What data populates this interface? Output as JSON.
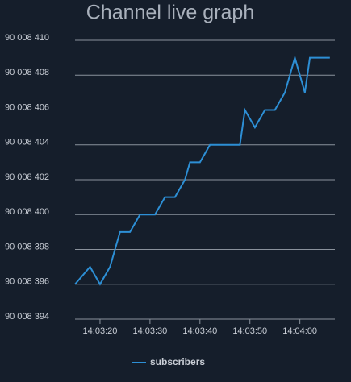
{
  "chart_data": {
    "type": "line",
    "title": "Channel live graph",
    "x": [
      "14:03:15",
      "14:03:18",
      "14:03:20",
      "14:03:22",
      "14:03:24",
      "14:03:26",
      "14:03:28",
      "14:03:29",
      "14:03:31",
      "14:03:33",
      "14:03:35",
      "14:03:37",
      "14:03:38",
      "14:03:40",
      "14:03:42",
      "14:03:44",
      "14:03:46",
      "14:03:48",
      "14:03:49",
      "14:03:51",
      "14:03:53",
      "14:03:55",
      "14:03:57",
      "14:03:59",
      "14:04:01",
      "14:04:02",
      "14:04:04",
      "14:04:06"
    ],
    "series": [
      {
        "name": "subscribers",
        "color": "#2d8fd5",
        "values": [
          90008396,
          90008397,
          90008396,
          90008397,
          90008399,
          90008399,
          90008400,
          90008400,
          90008400,
          90008401,
          90008401,
          90008402,
          90008403,
          90008403,
          90008404,
          90008404,
          90008404,
          90008404,
          90008406,
          90008405,
          90008406,
          90008406,
          90008407,
          90008409,
          90008407,
          90008409,
          90008409,
          90008409
        ]
      }
    ],
    "xlim": [
      "14:03:15",
      "14:04:07"
    ],
    "xticks": [
      "14:03:20",
      "14:03:30",
      "14:03:40",
      "14:03:50",
      "14:04:00"
    ],
    "ylim": [
      90008394,
      90008410
    ],
    "yticks": [
      {
        "value": 90008394,
        "label": "90 008 394"
      },
      {
        "value": 90008396,
        "label": "90 008 396"
      },
      {
        "value": 90008398,
        "label": "90 008 398"
      },
      {
        "value": 90008400,
        "label": "90 008 400"
      },
      {
        "value": 90008402,
        "label": "90 008 402"
      },
      {
        "value": 90008404,
        "label": "90 008 404"
      },
      {
        "value": 90008406,
        "label": "90 008 406"
      },
      {
        "value": 90008408,
        "label": "90 008 408"
      },
      {
        "value": 90008410,
        "label": "90 008 410"
      }
    ],
    "grid": true
  }
}
